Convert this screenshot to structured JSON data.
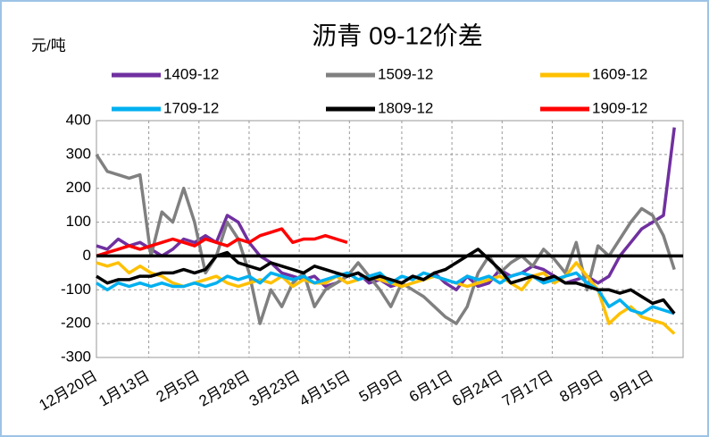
{
  "chart_data": {
    "type": "line",
    "title": "沥青 09-12价差",
    "y_unit": "元/吨",
    "x": [
      0,
      5,
      10,
      15,
      20,
      25,
      30,
      35,
      40,
      45,
      50,
      55,
      60,
      65,
      70,
      75,
      80,
      85,
      90,
      95,
      100,
      105,
      110,
      115,
      120,
      125,
      130,
      135,
      140,
      145,
      150,
      155,
      160,
      165,
      170,
      175,
      180,
      185,
      190,
      195,
      200,
      205,
      210,
      215,
      220,
      225,
      230,
      235,
      240,
      245,
      250,
      255,
      260,
      265
    ],
    "xlim": [
      0,
      269
    ],
    "xticks": [
      {
        "value": 0,
        "label": "12月20日"
      },
      {
        "value": 24,
        "label": "1月13日"
      },
      {
        "value": 47,
        "label": "2月5日"
      },
      {
        "value": 70,
        "label": "2月28日"
      },
      {
        "value": 93,
        "label": "3月23日"
      },
      {
        "value": 116,
        "label": "4月15日"
      },
      {
        "value": 140,
        "label": "5月9日"
      },
      {
        "value": 163,
        "label": "6月1日"
      },
      {
        "value": 186,
        "label": "6月24日"
      },
      {
        "value": 209,
        "label": "7月17日"
      },
      {
        "value": 232,
        "label": "8月9日"
      },
      {
        "value": 255,
        "label": "9月1日"
      }
    ],
    "ylim": [
      -300,
      400
    ],
    "yticks": [
      -300,
      -200,
      -100,
      0,
      100,
      200,
      300,
      400
    ],
    "grid": true,
    "series": [
      {
        "name": "1409-12",
        "color": "#7030a0",
        "values": [
          30,
          20,
          50,
          30,
          40,
          20,
          0,
          20,
          50,
          40,
          60,
          40,
          120,
          100,
          40,
          0,
          -20,
          -50,
          -60,
          -70,
          -60,
          -90,
          -80,
          -60,
          -50,
          -80,
          -70,
          -90,
          -80,
          -60,
          -70,
          -50,
          -80,
          -100,
          -60,
          -90,
          -80,
          -40,
          -60,
          -50,
          -30,
          -40,
          -60,
          -80,
          -70,
          -60,
          -80,
          -60,
          0,
          40,
          80,
          100,
          120,
          380
        ]
      },
      {
        "name": "1509-12",
        "color": "#808080",
        "values": [
          300,
          250,
          240,
          230,
          240,
          0,
          130,
          100,
          200,
          100,
          -50,
          0,
          100,
          50,
          -50,
          -200,
          -100,
          -150,
          -80,
          -50,
          -150,
          -100,
          -80,
          -60,
          -20,
          -60,
          -100,
          -150,
          -80,
          -100,
          -120,
          -150,
          -180,
          -200,
          -150,
          -50,
          0,
          -50,
          -20,
          0,
          -30,
          20,
          -10,
          -50,
          40,
          -100,
          30,
          0,
          50,
          100,
          140,
          120,
          60,
          -40
        ]
      },
      {
        "name": "1609-12",
        "color": "#ffc000",
        "values": [
          -20,
          -30,
          -20,
          -50,
          -30,
          -50,
          -60,
          -80,
          -90,
          -80,
          -70,
          -60,
          -80,
          -90,
          -80,
          -70,
          -80,
          -60,
          -90,
          -70,
          -80,
          -80,
          -60,
          -80,
          -70,
          -60,
          -70,
          -80,
          -90,
          -80,
          -70,
          -60,
          -70,
          -80,
          -90,
          -80,
          -70,
          -60,
          -80,
          -100,
          -60,
          -50,
          -80,
          -60,
          -20,
          -60,
          -100,
          -200,
          -170,
          -150,
          -180,
          -190,
          -200,
          -230
        ]
      },
      {
        "name": "1709-12",
        "color": "#00b0f0",
        "values": [
          -80,
          -100,
          -80,
          -90,
          -80,
          -90,
          -80,
          -90,
          -90,
          -80,
          -90,
          -80,
          -60,
          -70,
          -60,
          -80,
          -50,
          -60,
          -70,
          -60,
          -80,
          -70,
          -60,
          -50,
          -70,
          -60,
          -50,
          -80,
          -60,
          -70,
          -50,
          -60,
          -70,
          -80,
          -60,
          -70,
          -60,
          -80,
          -60,
          -50,
          -60,
          -80,
          -70,
          -60,
          -50,
          -80,
          -100,
          -150,
          -130,
          -160,
          -170,
          -150,
          -160,
          -170
        ]
      },
      {
        "name": "1809-12",
        "color": "#000000",
        "values": [
          -60,
          -80,
          -70,
          -70,
          -60,
          -60,
          -50,
          -50,
          -40,
          -50,
          -40,
          0,
          10,
          -20,
          -30,
          -40,
          -20,
          -30,
          -40,
          -50,
          -30,
          -40,
          -50,
          -60,
          -50,
          -70,
          -60,
          -70,
          -80,
          -60,
          -70,
          -50,
          -40,
          -20,
          0,
          20,
          -10,
          -40,
          -80,
          -70,
          -60,
          -70,
          -60,
          -80,
          -80,
          -90,
          -100,
          -100,
          -110,
          -100,
          -120,
          -140,
          -130,
          -170
        ]
      },
      {
        "name": "1909-12",
        "color": "#ff0000",
        "values": [
          0,
          10,
          20,
          30,
          20,
          30,
          40,
          50,
          40,
          30,
          50,
          40,
          30,
          50,
          40,
          60,
          70,
          80,
          40,
          50,
          50,
          60,
          50,
          40,
          null,
          null,
          null,
          null,
          null,
          null,
          null,
          null,
          null,
          null,
          null,
          null,
          null,
          null,
          null,
          null,
          null,
          null,
          null,
          null,
          null,
          null,
          null,
          null,
          null,
          null,
          null,
          null,
          null,
          null
        ]
      }
    ]
  }
}
